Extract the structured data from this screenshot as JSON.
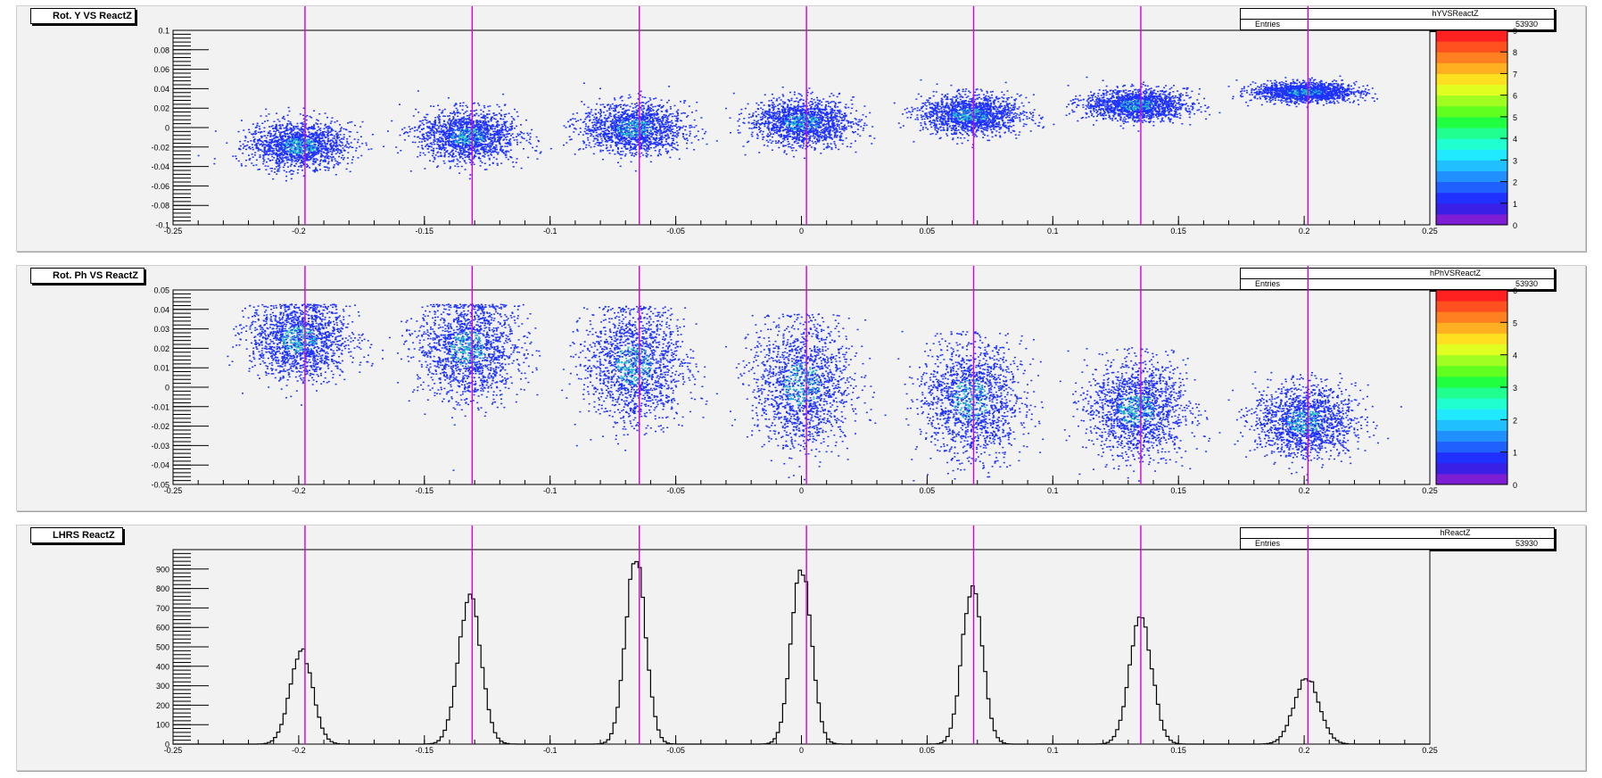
{
  "colors": {
    "cut_line": "#d400d4",
    "scatter_low": "#1e32ff",
    "scatter_mid": "#1ebcc8",
    "hist_line": "#000000"
  },
  "panels": [
    {
      "title": "Rot. Y VS ReactZ",
      "stats": {
        "name": "hYVSReactZ",
        "entries_label": "Entries",
        "entries_value": "53930"
      }
    },
    {
      "title": "Rot. Ph VS ReactZ",
      "stats": {
        "name": "hPhVSReactZ",
        "entries_label": "Entries",
        "entries_value": "53930"
      }
    },
    {
      "title": "LHRS ReactZ",
      "stats": {
        "name": "hReactZ",
        "entries_label": "Entries",
        "entries_value": "53930"
      }
    }
  ],
  "chart_data": [
    {
      "type": "heatmap",
      "title": "Rot. Y VS ReactZ",
      "histogram": "hYVSReactZ",
      "entries": 53930,
      "xlim": [
        -0.25,
        0.25
      ],
      "ylim": [
        -0.1,
        0.1
      ],
      "x_ticks": [
        "-0.25",
        "-0.2",
        "-0.15",
        "-0.1",
        "-0.05",
        "0",
        "0.05",
        "0.1",
        "0.15",
        "0.2",
        "0.25"
      ],
      "y_ticks": [
        "-0.1",
        "-0.08",
        "-0.06",
        "-0.04",
        "-0.02",
        "0",
        "0.02",
        "0.04",
        "0.06",
        "0.08",
        "0.1"
      ],
      "z_range": [
        0,
        9
      ],
      "z_ticks": [
        "0",
        "1",
        "2",
        "3",
        "4",
        "5",
        "6",
        "7",
        "8",
        "9"
      ],
      "clusters": [
        {
          "x": -0.2,
          "y": -0.018,
          "sx": 0.01,
          "sy": 0.012
        },
        {
          "x": -0.133,
          "y": -0.008,
          "sx": 0.01,
          "sy": 0.013
        },
        {
          "x": -0.067,
          "y": 0.0,
          "sx": 0.01,
          "sy": 0.013
        },
        {
          "x": 0.0,
          "y": 0.006,
          "sx": 0.01,
          "sy": 0.012
        },
        {
          "x": 0.067,
          "y": 0.014,
          "sx": 0.01,
          "sy": 0.01
        },
        {
          "x": 0.133,
          "y": 0.024,
          "sx": 0.01,
          "sy": 0.008
        },
        {
          "x": 0.2,
          "y": 0.037,
          "sx": 0.01,
          "sy": 0.005
        }
      ],
      "vertical_lines": [
        -0.1975,
        -0.131,
        -0.0645,
        0.002,
        0.0685,
        0.135,
        0.2015
      ]
    },
    {
      "type": "heatmap",
      "title": "Rot. Ph VS ReactZ",
      "histogram": "hPhVSReactZ",
      "entries": 53930,
      "xlim": [
        -0.25,
        0.25
      ],
      "ylim": [
        -0.05,
        0.05
      ],
      "x_ticks": [
        "-0.25",
        "-0.2",
        "-0.15",
        "-0.1",
        "-0.05",
        "0",
        "0.05",
        "0.1",
        "0.15",
        "0.2",
        "0.25"
      ],
      "y_ticks": [
        "-0.05",
        "-0.04",
        "-0.03",
        "-0.02",
        "-0.01",
        "0",
        "0.01",
        "0.02",
        "0.03",
        "0.04",
        "0.05"
      ],
      "z_range": [
        0,
        6
      ],
      "z_ticks": [
        "0",
        "1",
        "2",
        "3",
        "4",
        "5",
        "6"
      ],
      "clusters": [
        {
          "x": -0.2,
          "y": 0.025,
          "sx": 0.01,
          "sy": 0.01,
          "ymax": 0.043
        },
        {
          "x": -0.133,
          "y": 0.02,
          "sx": 0.01,
          "sy": 0.013,
          "ymax": 0.043
        },
        {
          "x": -0.067,
          "y": 0.012,
          "sx": 0.01,
          "sy": 0.015,
          "ymax": 0.042
        },
        {
          "x": 0.0,
          "y": 0.002,
          "sx": 0.01,
          "sy": 0.016,
          "ymax": 0.038
        },
        {
          "x": 0.067,
          "y": -0.006,
          "sx": 0.01,
          "sy": 0.015,
          "ymax": 0.029
        },
        {
          "x": 0.133,
          "y": -0.011,
          "sx": 0.01,
          "sy": 0.012,
          "ymax": 0.021
        },
        {
          "x": 0.2,
          "y": -0.017,
          "sx": 0.01,
          "sy": 0.009,
          "ymax": 0.009
        }
      ],
      "vertical_lines": [
        -0.1975,
        -0.131,
        -0.0645,
        0.002,
        0.0685,
        0.135,
        0.2015
      ]
    },
    {
      "type": "line",
      "title": "LHRS ReactZ",
      "histogram": "hReactZ",
      "entries": 53930,
      "xlim": [
        -0.25,
        0.25
      ],
      "ylim": [
        0,
        1000
      ],
      "x_ticks": [
        "-0.25",
        "-0.2",
        "-0.15",
        "-0.1",
        "-0.05",
        "0",
        "0.05",
        "0.1",
        "0.15",
        "0.2",
        "0.25"
      ],
      "y_ticks": [
        "0",
        "100",
        "200",
        "300",
        "400",
        "500",
        "600",
        "700",
        "800",
        "900"
      ],
      "peaks": [
        {
          "x": -0.199,
          "height": 480,
          "sigma": 0.0045
        },
        {
          "x": -0.132,
          "height": 760,
          "sigma": 0.0045
        },
        {
          "x": -0.066,
          "height": 950,
          "sigma": 0.004
        },
        {
          "x": 0.0,
          "height": 905,
          "sigma": 0.004
        },
        {
          "x": 0.068,
          "height": 820,
          "sigma": 0.004
        },
        {
          "x": 0.135,
          "height": 640,
          "sigma": 0.0045
        },
        {
          "x": 0.201,
          "height": 340,
          "sigma": 0.005
        }
      ],
      "vertical_lines": [
        -0.1975,
        -0.131,
        -0.0645,
        0.002,
        0.0685,
        0.135,
        0.2015
      ]
    }
  ]
}
